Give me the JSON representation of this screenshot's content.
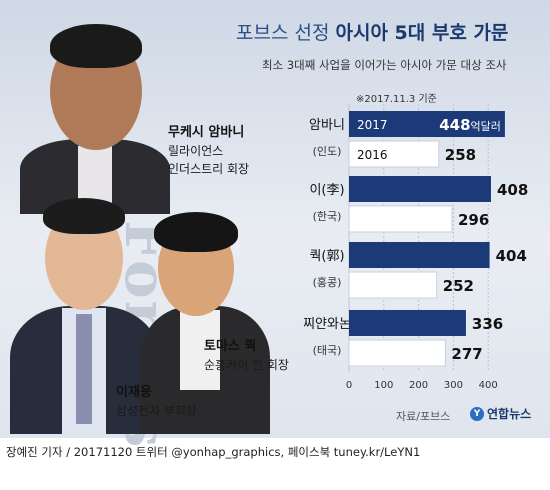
{
  "title_part1": "포브스 선정",
  "title_part2": "아시아 5대 부호 가문",
  "subtitle": "최소 3대째 사업을 이어가는 아시아 가문 대상 조사",
  "date_note": "※2017.11.3 기준",
  "watermark": "Forbes",
  "people": [
    {
      "name": "무케시 암바니",
      "role1": "릴라이언스",
      "role2": "인더스트리 회장"
    },
    {
      "name": "이재용",
      "role1": "삼성전자 부회장"
    },
    {
      "name": "토마스 쿽",
      "role1": "순훙카이 전 회장"
    }
  ],
  "source": "자료/포브스",
  "logo": "연합뉴스",
  "logo_mark": "Y",
  "footer": "장예진 기자 / 20171120 트위터 @yonhap_graphics, 페이스북 tuney.kr/LeYN1",
  "chart_data": {
    "type": "bar",
    "orientation": "horizontal",
    "categories": [
      {
        "name": "암바니",
        "country": "(인도)"
      },
      {
        "name": "이(李)",
        "country": "(한국)"
      },
      {
        "name": "쿽(郭)",
        "country": "(홍콩)"
      },
      {
        "name": "찌얀와논",
        "country": "(태국)"
      }
    ],
    "series": [
      {
        "name": "2017",
        "values": [
          448,
          408,
          404,
          336
        ],
        "color": "#1d3a78"
      },
      {
        "name": "2016",
        "values": [
          258,
          296,
          252,
          277
        ],
        "color": "#ffffff"
      }
    ],
    "unit_label": "억달러",
    "xlim": [
      0,
      448
    ],
    "xticks": [
      0,
      100,
      200,
      300,
      400
    ],
    "tick_labels": [
      "0",
      "100",
      "200",
      "300",
      "400"
    ],
    "grid": true
  }
}
